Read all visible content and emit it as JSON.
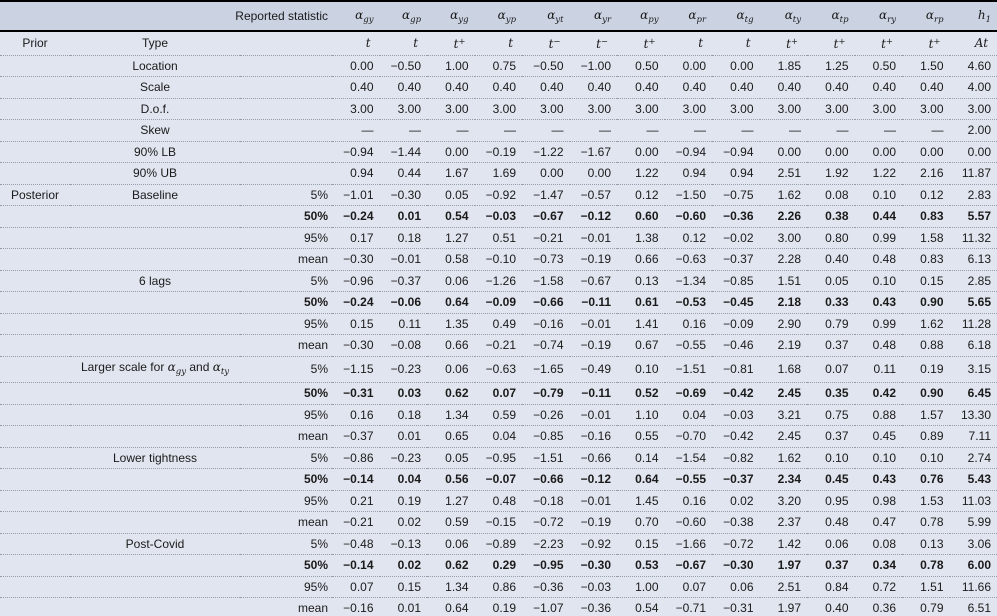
{
  "colors": {
    "header_band_bg": "#cbd3e3",
    "body_bg": "#e1e5ef",
    "rule": "#000000",
    "dotted_line": "#969ca8",
    "text": "#1a1a1a"
  },
  "table": {
    "reported_statistic_label": "Reported statistic",
    "prior_label": "Prior",
    "type_label": "Type",
    "posterior_label": "Posterior",
    "columns": [
      {
        "name": "alpha-gy",
        "symbol": {
          "it": "α",
          "sub": "gy"
        },
        "type": {
          "it": "t"
        }
      },
      {
        "name": "alpha-gp",
        "symbol": {
          "it": "α",
          "sub": "gp"
        },
        "type": {
          "it": "t"
        }
      },
      {
        "name": "alpha-yg",
        "symbol": {
          "it": "α",
          "sub": "yg"
        },
        "type": {
          "it": "t",
          "sup": "+"
        }
      },
      {
        "name": "alpha-yp",
        "symbol": {
          "it": "α",
          "sub": "yp"
        },
        "type": {
          "it": "t"
        }
      },
      {
        "name": "alpha-yt",
        "symbol": {
          "it": "α",
          "sub": "yt"
        },
        "type": {
          "it": "t",
          "sup": "−"
        }
      },
      {
        "name": "alpha-yr",
        "symbol": {
          "it": "α",
          "sub": "yr"
        },
        "type": {
          "it": "t",
          "sup": "−"
        }
      },
      {
        "name": "alpha-py",
        "symbol": {
          "it": "α",
          "sub": "py"
        },
        "type": {
          "it": "t",
          "sup": "+"
        }
      },
      {
        "name": "alpha-pr",
        "symbol": {
          "it": "α",
          "sub": "pr"
        },
        "type": {
          "it": "t"
        }
      },
      {
        "name": "alpha-tg",
        "symbol": {
          "it": "α",
          "sub": "tg"
        },
        "type": {
          "it": "t"
        }
      },
      {
        "name": "alpha-ty",
        "symbol": {
          "it": "α",
          "sub": "ty"
        },
        "type": {
          "it": "t",
          "sup": "+"
        }
      },
      {
        "name": "alpha-tp",
        "symbol": {
          "it": "α",
          "sub": "tp"
        },
        "type": {
          "it": "t",
          "sup": "+"
        }
      },
      {
        "name": "alpha-ry",
        "symbol": {
          "it": "α",
          "sub": "ry"
        },
        "type": {
          "it": "t",
          "sup": "+"
        }
      },
      {
        "name": "alpha-rp",
        "symbol": {
          "it": "α",
          "sub": "rp"
        },
        "type": {
          "it": "t",
          "sup": "+"
        }
      },
      {
        "name": "h1",
        "symbol": {
          "it": "h",
          "sub": "1"
        },
        "type": {
          "it": "At"
        }
      }
    ],
    "prior_rows": [
      {
        "type": "Location",
        "values": [
          "0.00",
          "−0.50",
          "1.00",
          "0.75",
          "−0.50",
          "−1.00",
          "0.50",
          "0.00",
          "0.00",
          "1.85",
          "1.25",
          "0.50",
          "1.50",
          "4.60"
        ]
      },
      {
        "type": "Scale",
        "values": [
          "0.40",
          "0.40",
          "0.40",
          "0.40",
          "0.40",
          "0.40",
          "0.40",
          "0.40",
          "0.40",
          "0.40",
          "0.40",
          "0.40",
          "0.40",
          "4.00"
        ]
      },
      {
        "type": "D.o.f.",
        "values": [
          "3.00",
          "3.00",
          "3.00",
          "3.00",
          "3.00",
          "3.00",
          "3.00",
          "3.00",
          "3.00",
          "3.00",
          "3.00",
          "3.00",
          "3.00",
          "3.00"
        ]
      },
      {
        "type": "Skew",
        "values": [
          "—",
          "—",
          "—",
          "—",
          "—",
          "—",
          "—",
          "—",
          "—",
          "—",
          "—",
          "—",
          "—",
          "2.00"
        ]
      },
      {
        "type": "90% LB",
        "values": [
          "−0.94",
          "−1.44",
          "0.00",
          "−0.19",
          "−1.22",
          "−1.67",
          "0.00",
          "−0.94",
          "−0.94",
          "0.00",
          "0.00",
          "0.00",
          "0.00",
          "0.00"
        ]
      },
      {
        "type": "90% UB",
        "values": [
          "0.94",
          "0.44",
          "1.67",
          "1.69",
          "0.00",
          "0.00",
          "1.22",
          "0.94",
          "0.94",
          "2.51",
          "1.92",
          "1.22",
          "2.16",
          "11.87"
        ]
      }
    ],
    "posterior_blocks": [
      {
        "type": "Baseline",
        "rows": [
          {
            "stat": "5%",
            "bold": false,
            "values": [
              "−1.01",
              "−0.30",
              "0.05",
              "−0.92",
              "−1.47",
              "−0.57",
              "0.12",
              "−1.50",
              "−0.75",
              "1.62",
              "0.08",
              "0.10",
              "0.12",
              "2.83"
            ]
          },
          {
            "stat": "50%",
            "bold": true,
            "values": [
              "−0.24",
              "0.01",
              "0.54",
              "−0.03",
              "−0.67",
              "−0.12",
              "0.60",
              "−0.60",
              "−0.36",
              "2.26",
              "0.38",
              "0.44",
              "0.83",
              "5.57"
            ]
          },
          {
            "stat": "95%",
            "bold": false,
            "values": [
              "0.17",
              "0.18",
              "1.27",
              "0.51",
              "−0.21",
              "−0.01",
              "1.38",
              "0.12",
              "−0.02",
              "3.00",
              "0.80",
              "0.99",
              "1.58",
              "11.32"
            ]
          },
          {
            "stat": "mean",
            "bold": false,
            "values": [
              "−0.30",
              "−0.01",
              "0.58",
              "−0.10",
              "−0.73",
              "−0.19",
              "0.66",
              "−0.63",
              "−0.37",
              "2.28",
              "0.40",
              "0.48",
              "0.83",
              "6.13"
            ]
          }
        ]
      },
      {
        "type": "6 lags",
        "rows": [
          {
            "stat": "5%",
            "bold": false,
            "values": [
              "−0.96",
              "−0.37",
              "0.06",
              "−1.26",
              "−1.58",
              "−0.67",
              "0.13",
              "−1.34",
              "−0.85",
              "1.51",
              "0.05",
              "0.10",
              "0.15",
              "2.85"
            ]
          },
          {
            "stat": "50%",
            "bold": true,
            "values": [
              "−0.24",
              "−0.06",
              "0.64",
              "−0.09",
              "−0.66",
              "−0.11",
              "0.61",
              "−0.53",
              "−0.45",
              "2.18",
              "0.33",
              "0.43",
              "0.90",
              "5.65"
            ]
          },
          {
            "stat": "95%",
            "bold": false,
            "values": [
              "0.15",
              "0.11",
              "1.35",
              "0.49",
              "−0.16",
              "−0.01",
              "1.41",
              "0.16",
              "−0.09",
              "2.90",
              "0.79",
              "0.99",
              "1.62",
              "11.28"
            ]
          },
          {
            "stat": "mean",
            "bold": false,
            "values": [
              "−0.30",
              "−0.08",
              "0.66",
              "−0.21",
              "−0.74",
              "−0.19",
              "0.67",
              "−0.55",
              "−0.46",
              "2.19",
              "0.37",
              "0.48",
              "0.88",
              "6.18"
            ]
          }
        ]
      },
      {
        "type": [
          "Larger scale for ",
          {
            "it": "α",
            "sub": "gy"
          },
          " and ",
          {
            "it": "α",
            "sub": "ty"
          }
        ],
        "rows": [
          {
            "stat": "5%",
            "bold": false,
            "values": [
              "−1.15",
              "−0.23",
              "0.06",
              "−0.63",
              "−1.65",
              "−0.49",
              "0.10",
              "−1.51",
              "−0.81",
              "1.68",
              "0.07",
              "0.11",
              "0.19",
              "3.15"
            ]
          },
          {
            "stat": "50%",
            "bold": true,
            "values": [
              "−0.31",
              "0.03",
              "0.62",
              "0.07",
              "−0.79",
              "−0.11",
              "0.52",
              "−0.69",
              "−0.42",
              "2.45",
              "0.35",
              "0.42",
              "0.90",
              "6.45"
            ]
          },
          {
            "stat": "95%",
            "bold": false,
            "values": [
              "0.16",
              "0.18",
              "1.34",
              "0.59",
              "−0.26",
              "−0.01",
              "1.10",
              "0.04",
              "−0.03",
              "3.21",
              "0.75",
              "0.88",
              "1.57",
              "13.30"
            ]
          },
          {
            "stat": "mean",
            "bold": false,
            "values": [
              "−0.37",
              "0.01",
              "0.65",
              "0.04",
              "−0.85",
              "−0.16",
              "0.55",
              "−0.70",
              "−0.42",
              "2.45",
              "0.37",
              "0.45",
              "0.89",
              "7.11"
            ]
          }
        ]
      },
      {
        "type": "Lower tightness",
        "rows": [
          {
            "stat": "5%",
            "bold": false,
            "values": [
              "−0.86",
              "−0.23",
              "0.05",
              "−0.95",
              "−1.51",
              "−0.66",
              "0.14",
              "−1.54",
              "−0.82",
              "1.62",
              "0.10",
              "0.10",
              "0.10",
              "2.74"
            ]
          },
          {
            "stat": "50%",
            "bold": true,
            "values": [
              "−0.14",
              "0.04",
              "0.56",
              "−0.07",
              "−0.66",
              "−0.12",
              "0.64",
              "−0.55",
              "−0.37",
              "2.34",
              "0.45",
              "0.43",
              "0.76",
              "5.43"
            ]
          },
          {
            "stat": "95%",
            "bold": false,
            "values": [
              "0.21",
              "0.19",
              "1.27",
              "0.48",
              "−0.18",
              "−0.01",
              "1.45",
              "0.16",
              "0.02",
              "3.20",
              "0.95",
              "0.98",
              "1.53",
              "11.03"
            ]
          },
          {
            "stat": "mean",
            "bold": false,
            "values": [
              "−0.21",
              "0.02",
              "0.59",
              "−0.15",
              "−0.72",
              "−0.19",
              "0.70",
              "−0.60",
              "−0.38",
              "2.37",
              "0.48",
              "0.47",
              "0.78",
              "5.99"
            ]
          }
        ]
      },
      {
        "type": "Post-Covid",
        "rows": [
          {
            "stat": "5%",
            "bold": false,
            "values": [
              "−0.48",
              "−0.13",
              "0.06",
              "−0.89",
              "−2.23",
              "−0.92",
              "0.15",
              "−1.66",
              "−0.72",
              "1.42",
              "0.06",
              "0.08",
              "0.13",
              "3.06"
            ]
          },
          {
            "stat": "50%",
            "bold": true,
            "values": [
              "−0.14",
              "0.02",
              "0.62",
              "0.29",
              "−0.95",
              "−0.30",
              "0.53",
              "−0.67",
              "−0.30",
              "1.97",
              "0.37",
              "0.34",
              "0.78",
              "6.00"
            ]
          },
          {
            "stat": "95%",
            "bold": false,
            "values": [
              "0.07",
              "0.15",
              "1.34",
              "0.86",
              "−0.36",
              "−0.03",
              "1.00",
              "0.07",
              "0.06",
              "2.51",
              "0.84",
              "0.72",
              "1.51",
              "11.66"
            ]
          },
          {
            "stat": "mean",
            "bold": false,
            "values": [
              "−0.16",
              "0.01",
              "0.64",
              "0.19",
              "−1.07",
              "−0.36",
              "0.54",
              "−0.71",
              "−0.31",
              "1.97",
              "0.40",
              "0.36",
              "0.79",
              "6.51"
            ]
          }
        ]
      }
    ]
  }
}
